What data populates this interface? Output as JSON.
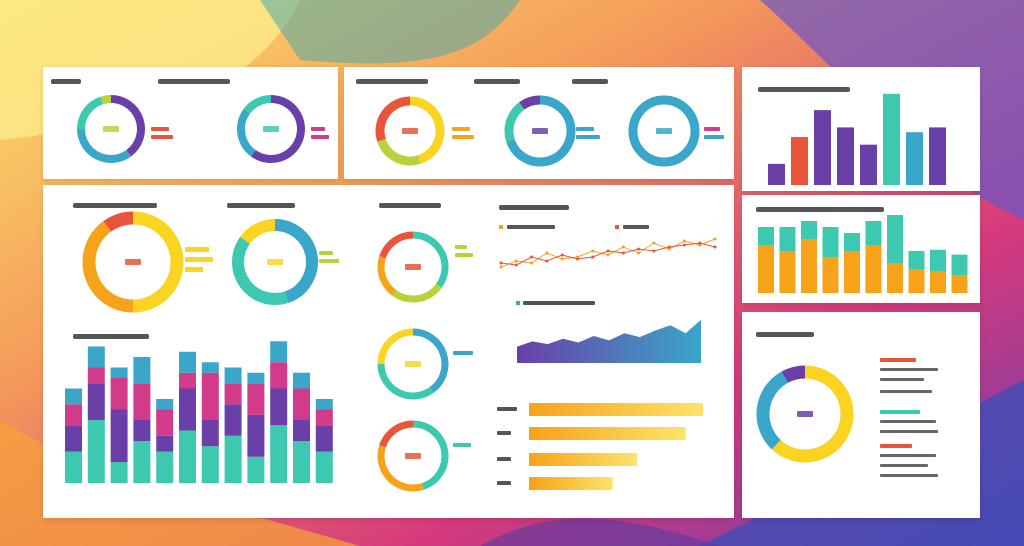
{
  "palette": {
    "purple": "#6a3fa8",
    "teal": "#3cc9b0",
    "cyan": "#3aa6c9",
    "orange": "#f7a21b",
    "yellow": "#fbd321",
    "red": "#e8553a",
    "magenta": "#d23a8a",
    "green": "#b8d23c",
    "lightyellow": "#fde36a"
  },
  "chart_data": [
    {
      "id": "donut-1",
      "type": "pie",
      "title": "",
      "values": [
        40,
        35,
        20,
        5
      ],
      "colors": [
        "purple",
        "cyan",
        "teal",
        "green"
      ]
    },
    {
      "id": "donut-2",
      "type": "pie",
      "title": "",
      "values": [
        60,
        25,
        15
      ],
      "colors": [
        "purple",
        "cyan",
        "teal"
      ]
    },
    {
      "id": "donut-3",
      "type": "pie",
      "title": "",
      "values": [
        45,
        25,
        30
      ],
      "colors": [
        "yellow",
        "green",
        "red"
      ]
    },
    {
      "id": "donut-4",
      "type": "pie",
      "title": "",
      "values": [
        70,
        20,
        10
      ],
      "colors": [
        "cyan",
        "teal",
        "purple"
      ]
    },
    {
      "id": "donut-5",
      "type": "pie",
      "title": "",
      "values": [
        100
      ],
      "colors": [
        "cyan"
      ]
    },
    {
      "id": "bar-top-right",
      "type": "bar",
      "title": "",
      "values": [
        22,
        50,
        78,
        60,
        42,
        95,
        55,
        60
      ],
      "colors": [
        "purple",
        "red",
        "purple",
        "purple",
        "purple",
        "teal",
        "cyan",
        "purple"
      ]
    },
    {
      "id": "stacked-right",
      "type": "bar",
      "title": "",
      "series": [
        {
          "name": "",
          "values": [
            40,
            35,
            45,
            30,
            35,
            40,
            25,
            20,
            18,
            15
          ]
        },
        {
          "name": "",
          "values": [
            15,
            20,
            15,
            25,
            15,
            20,
            40,
            15,
            18,
            17
          ]
        }
      ],
      "colors": [
        "orange",
        "teal"
      ]
    },
    {
      "id": "donut-6",
      "type": "pie",
      "title": "",
      "values": [
        50,
        40,
        10
      ],
      "colors": [
        "yellow",
        "orange",
        "red"
      ]
    },
    {
      "id": "donut-7",
      "type": "pie",
      "title": "",
      "values": [
        45,
        40,
        15
      ],
      "colors": [
        "cyan",
        "teal",
        "yellow"
      ]
    },
    {
      "id": "donut-8",
      "type": "pie",
      "title": "",
      "values": [
        35,
        25,
        20,
        20
      ],
      "colors": [
        "teal",
        "green",
        "orange",
        "red"
      ]
    },
    {
      "id": "donut-9",
      "type": "pie",
      "title": "",
      "values": [
        40,
        35,
        25
      ],
      "colors": [
        "cyan",
        "teal",
        "yellow"
      ]
    },
    {
      "id": "donut-10",
      "type": "pie",
      "title": "",
      "values": [
        45,
        35,
        20
      ],
      "colors": [
        "teal",
        "orange",
        "red"
      ]
    },
    {
      "id": "line-1",
      "type": "line",
      "title": "",
      "series": [
        {
          "name": "",
          "values": [
            20,
            35,
            30,
            55,
            40,
            45,
            60,
            50,
            70,
            55,
            80,
            65,
            85,
            75,
            90
          ]
        },
        {
          "name": "",
          "values": [
            30,
            25,
            45,
            35,
            50,
            40,
            45,
            60,
            55,
            65,
            60,
            70,
            75,
            80,
            70
          ]
        }
      ],
      "colors": [
        "orange",
        "red"
      ]
    },
    {
      "id": "area-1",
      "type": "area",
      "title": "",
      "values": [
        30,
        40,
        35,
        45,
        38,
        50,
        42,
        55,
        48,
        60,
        70,
        55,
        80
      ],
      "colors": [
        "purple",
        "cyan"
      ]
    },
    {
      "id": "hbar-1",
      "type": "bar",
      "title": "",
      "categories": [
        "",
        "",
        "",
        ""
      ],
      "values": [
        100,
        90,
        62,
        48
      ],
      "colors": [
        "orange",
        "lightyellow"
      ]
    },
    {
      "id": "stacked-bottom",
      "type": "bar",
      "title": "",
      "series": [
        {
          "name": "",
          "values": [
            30,
            60,
            20,
            40,
            30,
            50,
            35,
            45,
            25,
            55,
            40,
            30
          ]
        },
        {
          "name": "",
          "values": [
            25,
            35,
            50,
            20,
            15,
            40,
            25,
            30,
            40,
            35,
            20,
            25
          ]
        },
        {
          "name": "",
          "values": [
            20,
            15,
            30,
            35,
            25,
            15,
            45,
            20,
            30,
            25,
            30,
            15
          ]
        },
        {
          "name": "",
          "values": [
            15,
            20,
            10,
            25,
            10,
            20,
            10,
            15,
            10,
            20,
            15,
            10
          ]
        }
      ],
      "colors": [
        "teal",
        "purple",
        "magenta",
        "cyan"
      ]
    },
    {
      "id": "donut-bottom-right",
      "type": "pie",
      "title": "",
      "values": [
        62,
        30,
        8
      ],
      "colors": [
        "yellow",
        "cyan",
        "purple"
      ]
    }
  ]
}
